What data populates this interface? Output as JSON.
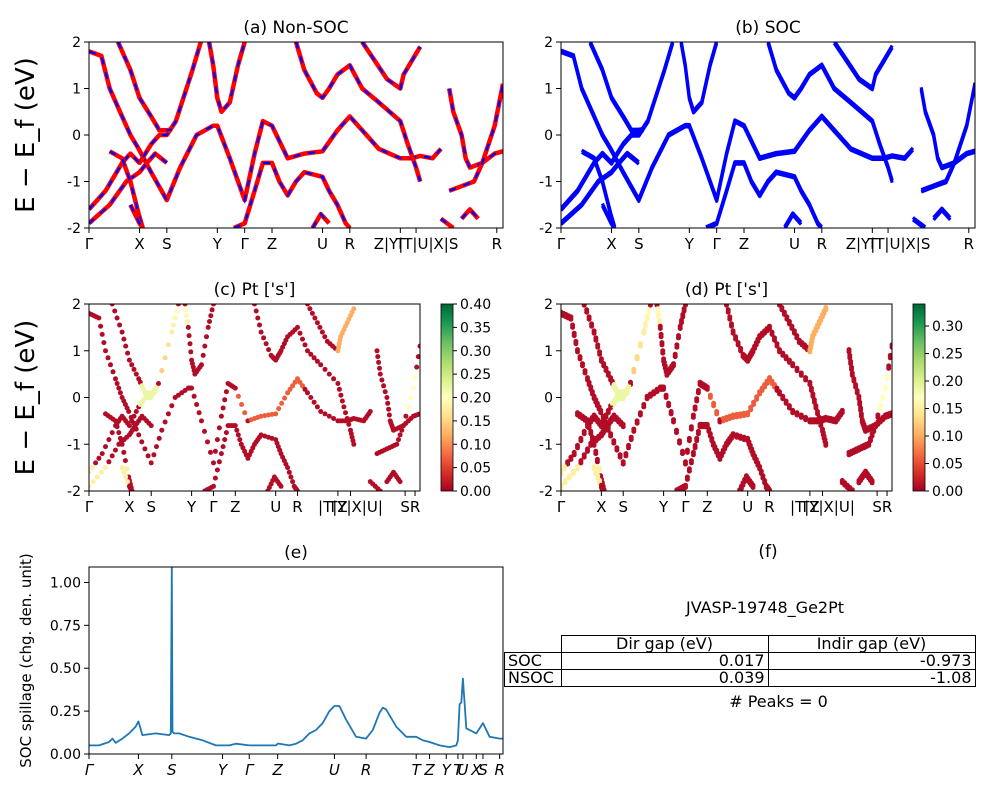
{
  "figure": {
    "ylabel_band": "E − E_f (eV)",
    "panel_f_title": "(f)",
    "info_title": "JVASP-19748_Ge2Pt",
    "table": {
      "headers": [
        "",
        "Dir gap (eV)",
        "Indir gap (eV)"
      ],
      "rows": [
        {
          "label": "SOC",
          "dir": "0.017",
          "indir": "-0.973"
        },
        {
          "label": "NSOC",
          "dir": "0.039",
          "indir": "-1.08"
        }
      ]
    },
    "peaks_text": "# Peaks = 0"
  },
  "chart_data": [
    {
      "id": "a",
      "type": "line",
      "title": "(a) Non-SOC",
      "ylabel": "E − E_f (eV)",
      "ylim": [
        -2,
        2
      ],
      "yticks": [
        -2,
        -1,
        0,
        1,
        2
      ],
      "xlim": [
        0,
        1
      ],
      "xticks": [
        {
          "x": 0.0,
          "label": "Γ"
        },
        {
          "x": 0.122,
          "label": "X"
        },
        {
          "x": 0.188,
          "label": "S"
        },
        {
          "x": 0.31,
          "label": "Y"
        },
        {
          "x": 0.376,
          "label": "Γ"
        },
        {
          "x": 0.442,
          "label": "Z"
        },
        {
          "x": 0.564,
          "label": "U"
        },
        {
          "x": 0.63,
          "label": "R"
        },
        {
          "x": 0.752,
          "label": "T"
        },
        {
          "x": 0.79,
          "label": "Z|Y|T|U|X|S"
        },
        {
          "x": 0.985,
          "label": "R"
        }
      ],
      "series_colors": [
        "#ff0000",
        "#0000ff"
      ],
      "bands": [
        [
          [
            0,
            1.8
          ],
          [
            0.03,
            1.7
          ],
          [
            0.05,
            1.0
          ],
          [
            0.08,
            0.4
          ],
          [
            0.1,
            0.0
          ],
          [
            0.12,
            -0.3
          ],
          [
            0.15,
            -0.8
          ],
          [
            0.188,
            -1.4
          ],
          [
            0.22,
            -0.7
          ],
          [
            0.26,
            0.0
          ],
          [
            0.3,
            0.2
          ],
          [
            0.31,
            0.2
          ],
          [
            0.34,
            -0.5
          ],
          [
            0.376,
            -1.4
          ],
          [
            0.4,
            -0.4
          ],
          [
            0.42,
            0.3
          ],
          [
            0.442,
            0.2
          ],
          [
            0.48,
            -0.5
          ],
          [
            0.52,
            -0.4
          ],
          [
            0.564,
            -0.35
          ],
          [
            0.6,
            0.1
          ],
          [
            0.63,
            0.4
          ],
          [
            0.66,
            0.1
          ],
          [
            0.7,
            -0.3
          ],
          [
            0.752,
            -0.5
          ],
          [
            0.78,
            -0.5
          ],
          [
            0.8,
            -0.45
          ],
          [
            0.83,
            -0.5
          ],
          [
            0.85,
            -0.3
          ]
        ],
        [
          [
            0,
            -1.6
          ],
          [
            0.04,
            -1.2
          ],
          [
            0.08,
            -0.6
          ],
          [
            0.1,
            -0.4
          ],
          [
            0.122,
            -0.6
          ],
          [
            0.15,
            -0.2
          ],
          [
            0.17,
            0.0
          ],
          [
            0.188,
            0.0
          ],
          [
            0.21,
            0.3
          ],
          [
            0.25,
            1.4
          ],
          [
            0.27,
            2.0
          ]
        ],
        [
          [
            0,
            -1.9
          ],
          [
            0.05,
            -1.5
          ],
          [
            0.09,
            -1.0
          ],
          [
            0.122,
            -0.8
          ],
          [
            0.14,
            -0.6
          ],
          [
            0.16,
            -0.4
          ],
          [
            0.188,
            -0.6
          ]
        ],
        [
          [
            0.07,
            2.0
          ],
          [
            0.1,
            1.4
          ],
          [
            0.122,
            0.8
          ],
          [
            0.15,
            0.4
          ],
          [
            0.17,
            0.1
          ],
          [
            0.188,
            0.1
          ],
          [
            0.2,
            0.12
          ]
        ],
        [
          [
            0.05,
            -0.35
          ],
          [
            0.08,
            -0.5
          ],
          [
            0.1,
            -1.0
          ],
          [
            0.12,
            -1.7
          ],
          [
            0.13,
            -2.0
          ]
        ],
        [
          [
            0.29,
            2.0
          ],
          [
            0.3,
            1.5
          ],
          [
            0.31,
            0.8
          ],
          [
            0.32,
            0.5
          ],
          [
            0.34,
            0.7
          ],
          [
            0.36,
            1.5
          ],
          [
            0.376,
            2.0
          ]
        ],
        [
          [
            0.35,
            -2.0
          ],
          [
            0.376,
            -1.9
          ],
          [
            0.4,
            -1.2
          ],
          [
            0.42,
            -0.6
          ],
          [
            0.442,
            -0.6
          ],
          [
            0.46,
            -1.0
          ],
          [
            0.48,
            -1.3
          ],
          [
            0.5,
            -1.0
          ],
          [
            0.52,
            -0.8
          ],
          [
            0.564,
            -0.9
          ],
          [
            0.58,
            -1.2
          ],
          [
            0.6,
            -1.5
          ],
          [
            0.62,
            -1.9
          ],
          [
            0.63,
            -2.0
          ]
        ],
        [
          [
            0.5,
            2.0
          ],
          [
            0.52,
            1.4
          ],
          [
            0.55,
            0.9
          ],
          [
            0.564,
            0.8
          ],
          [
            0.58,
            1.0
          ],
          [
            0.6,
            1.3
          ],
          [
            0.63,
            1.5
          ],
          [
            0.66,
            1.0
          ],
          [
            0.7,
            0.7
          ],
          [
            0.752,
            0.3
          ],
          [
            0.77,
            -0.2
          ],
          [
            0.79,
            -0.7
          ],
          [
            0.8,
            -1.0
          ]
        ],
        [
          [
            0.66,
            2.0
          ],
          [
            0.69,
            1.6
          ],
          [
            0.72,
            1.2
          ],
          [
            0.752,
            1.0
          ],
          [
            0.76,
            1.3
          ],
          [
            0.78,
            1.6
          ],
          [
            0.8,
            1.9
          ]
        ],
        [
          [
            0.87,
            1.0
          ],
          [
            0.88,
            0.5
          ],
          [
            0.9,
            0.0
          ],
          [
            0.91,
            -0.5
          ],
          [
            0.92,
            -0.7
          ],
          [
            0.95,
            -0.6
          ],
          [
            0.98,
            -0.4
          ],
          [
            1.0,
            -0.35
          ]
        ],
        [
          [
            0.87,
            -1.2
          ],
          [
            0.9,
            -1.1
          ],
          [
            0.93,
            -1.0
          ],
          [
            0.95,
            -0.6
          ],
          [
            0.98,
            0.2
          ],
          [
            1.0,
            1.1
          ]
        ],
        [
          [
            0.85,
            -1.8
          ],
          [
            0.88,
            -2.0
          ]
        ],
        [
          [
            0.54,
            -2.0
          ],
          [
            0.56,
            -1.7
          ],
          [
            0.58,
            -1.9
          ]
        ],
        [
          [
            0.9,
            -1.8
          ],
          [
            0.92,
            -1.6
          ],
          [
            0.94,
            -1.8
          ]
        ],
        [
          [
            0.1,
            -1.5
          ],
          [
            0.122,
            -1.9
          ],
          [
            0.13,
            -2.0
          ]
        ]
      ]
    },
    {
      "id": "b",
      "type": "line",
      "title": "(b) SOC",
      "ylim": [
        -2,
        2
      ],
      "yticks": [
        -2,
        -1,
        0,
        1,
        2
      ],
      "xlim": [
        0,
        1
      ],
      "xticks": [
        {
          "x": 0.0,
          "label": "Γ"
        },
        {
          "x": 0.122,
          "label": "X"
        },
        {
          "x": 0.188,
          "label": "S"
        },
        {
          "x": 0.31,
          "label": "Y"
        },
        {
          "x": 0.376,
          "label": "Γ"
        },
        {
          "x": 0.442,
          "label": "Z"
        },
        {
          "x": 0.564,
          "label": "U"
        },
        {
          "x": 0.63,
          "label": "R"
        },
        {
          "x": 0.752,
          "label": "T"
        },
        {
          "x": 0.79,
          "label": "Z|Y|T|U|X|S"
        },
        {
          "x": 0.985,
          "label": "R"
        }
      ],
      "series_colors": [
        "#0000ff"
      ],
      "split": 0.05
    },
    {
      "id": "c",
      "type": "scatter",
      "title": "(c)  Pt ['s']",
      "ylabel": "E − E_f (eV)",
      "ylim": [
        -2,
        2
      ],
      "yticks": [
        -2,
        -1,
        0,
        1,
        2
      ],
      "xticks": [
        {
          "x": 0.0,
          "label": "Γ"
        },
        {
          "x": 0.122,
          "label": "X"
        },
        {
          "x": 0.188,
          "label": "S"
        },
        {
          "x": 0.31,
          "label": "Y"
        },
        {
          "x": 0.376,
          "label": "Γ"
        },
        {
          "x": 0.442,
          "label": "Z"
        },
        {
          "x": 0.564,
          "label": "U"
        },
        {
          "x": 0.63,
          "label": "R"
        },
        {
          "x": 0.752,
          "label": "TZ"
        },
        {
          "x": 0.79,
          "label": "|T|Y|X|U|"
        },
        {
          "x": 0.955,
          "label": "S"
        },
        {
          "x": 0.985,
          "label": "R"
        }
      ],
      "colorbar": {
        "min": 0.0,
        "max": 0.4,
        "ticks": [
          "0.00",
          "0.05",
          "0.10",
          "0.15",
          "0.20",
          "0.25",
          "0.30",
          "0.35",
          "0.40"
        ]
      }
    },
    {
      "id": "d",
      "type": "scatter",
      "title": "(d) Pt ['s']",
      "ylim": [
        -2,
        2
      ],
      "yticks": [
        -2,
        -1,
        0,
        1,
        2
      ],
      "xticks": [
        {
          "x": 0.0,
          "label": "Γ"
        },
        {
          "x": 0.122,
          "label": "X"
        },
        {
          "x": 0.188,
          "label": "S"
        },
        {
          "x": 0.31,
          "label": "Y"
        },
        {
          "x": 0.376,
          "label": "Γ"
        },
        {
          "x": 0.442,
          "label": "Z"
        },
        {
          "x": 0.564,
          "label": "U"
        },
        {
          "x": 0.63,
          "label": "R"
        },
        {
          "x": 0.752,
          "label": "TZ"
        },
        {
          "x": 0.79,
          "label": "|T|Y|X|U|"
        },
        {
          "x": 0.955,
          "label": "S"
        },
        {
          "x": 0.985,
          "label": "R"
        }
      ],
      "colorbar": {
        "min": 0.0,
        "max": 0.34,
        "ticks": [
          "0.00",
          "0.05",
          "0.10",
          "0.15",
          "0.20",
          "0.25",
          "0.30"
        ]
      }
    },
    {
      "id": "e",
      "type": "line",
      "title": "(e)",
      "ylabel": "SOC spillage (chg. den. unit)",
      "ylim": [
        0,
        1.09
      ],
      "yticks": [
        "0.00",
        "0.25",
        "0.50",
        "0.75",
        "1.00"
      ],
      "xticks": [
        {
          "x": 0.0,
          "label": "Γ"
        },
        {
          "x": 0.148,
          "label": "X"
        },
        {
          "x": 0.248,
          "label": "S"
        },
        {
          "x": 0.4,
          "label": "Y"
        },
        {
          "x": 0.48,
          "label": "Γ"
        },
        {
          "x": 0.565,
          "label": "Z"
        },
        {
          "x": 0.735,
          "label": "U"
        },
        {
          "x": 0.83,
          "label": "R"
        },
        {
          "x": 0.98,
          "label": "T"
        },
        {
          "x": 1.02,
          "label": "Z"
        },
        {
          "x": 1.07,
          "label": "Y"
        },
        {
          "x": 1.105,
          "label": "T"
        },
        {
          "x": 1.12,
          "label": "U"
        },
        {
          "x": 1.16,
          "label": "X"
        },
        {
          "x": 1.18,
          "label": "S"
        },
        {
          "x": 1.23,
          "label": "R"
        }
      ],
      "xlim": [
        0,
        1.24
      ],
      "color": "#1f77b4",
      "x": [
        0,
        0.03,
        0.06,
        0.07,
        0.08,
        0.1,
        0.12,
        0.14,
        0.148,
        0.16,
        0.2,
        0.24,
        0.245,
        0.248,
        0.25,
        0.255,
        0.27,
        0.3,
        0.34,
        0.38,
        0.4,
        0.42,
        0.44,
        0.48,
        0.52,
        0.56,
        0.565,
        0.57,
        0.6,
        0.62,
        0.64,
        0.66,
        0.68,
        0.7,
        0.72,
        0.735,
        0.75,
        0.77,
        0.8,
        0.83,
        0.85,
        0.87,
        0.88,
        0.89,
        0.92,
        0.95,
        0.98,
        1.0,
        1.02,
        1.05,
        1.08,
        1.1,
        1.105,
        1.11,
        1.115,
        1.12,
        1.13,
        1.16,
        1.18,
        1.2,
        1.23,
        1.24
      ],
      "y": [
        0.05,
        0.05,
        0.07,
        0.09,
        0.065,
        0.09,
        0.12,
        0.16,
        0.19,
        0.11,
        0.12,
        0.11,
        0.12,
        1.09,
        0.13,
        0.12,
        0.12,
        0.1,
        0.08,
        0.05,
        0.05,
        0.05,
        0.06,
        0.05,
        0.05,
        0.05,
        0.06,
        0.06,
        0.05,
        0.06,
        0.08,
        0.12,
        0.14,
        0.18,
        0.25,
        0.28,
        0.28,
        0.2,
        0.1,
        0.09,
        0.14,
        0.24,
        0.27,
        0.26,
        0.16,
        0.1,
        0.1,
        0.08,
        0.07,
        0.05,
        0.04,
        0.05,
        0.08,
        0.29,
        0.3,
        0.44,
        0.15,
        0.12,
        0.18,
        0.1,
        0.09,
        0.09
      ]
    }
  ]
}
